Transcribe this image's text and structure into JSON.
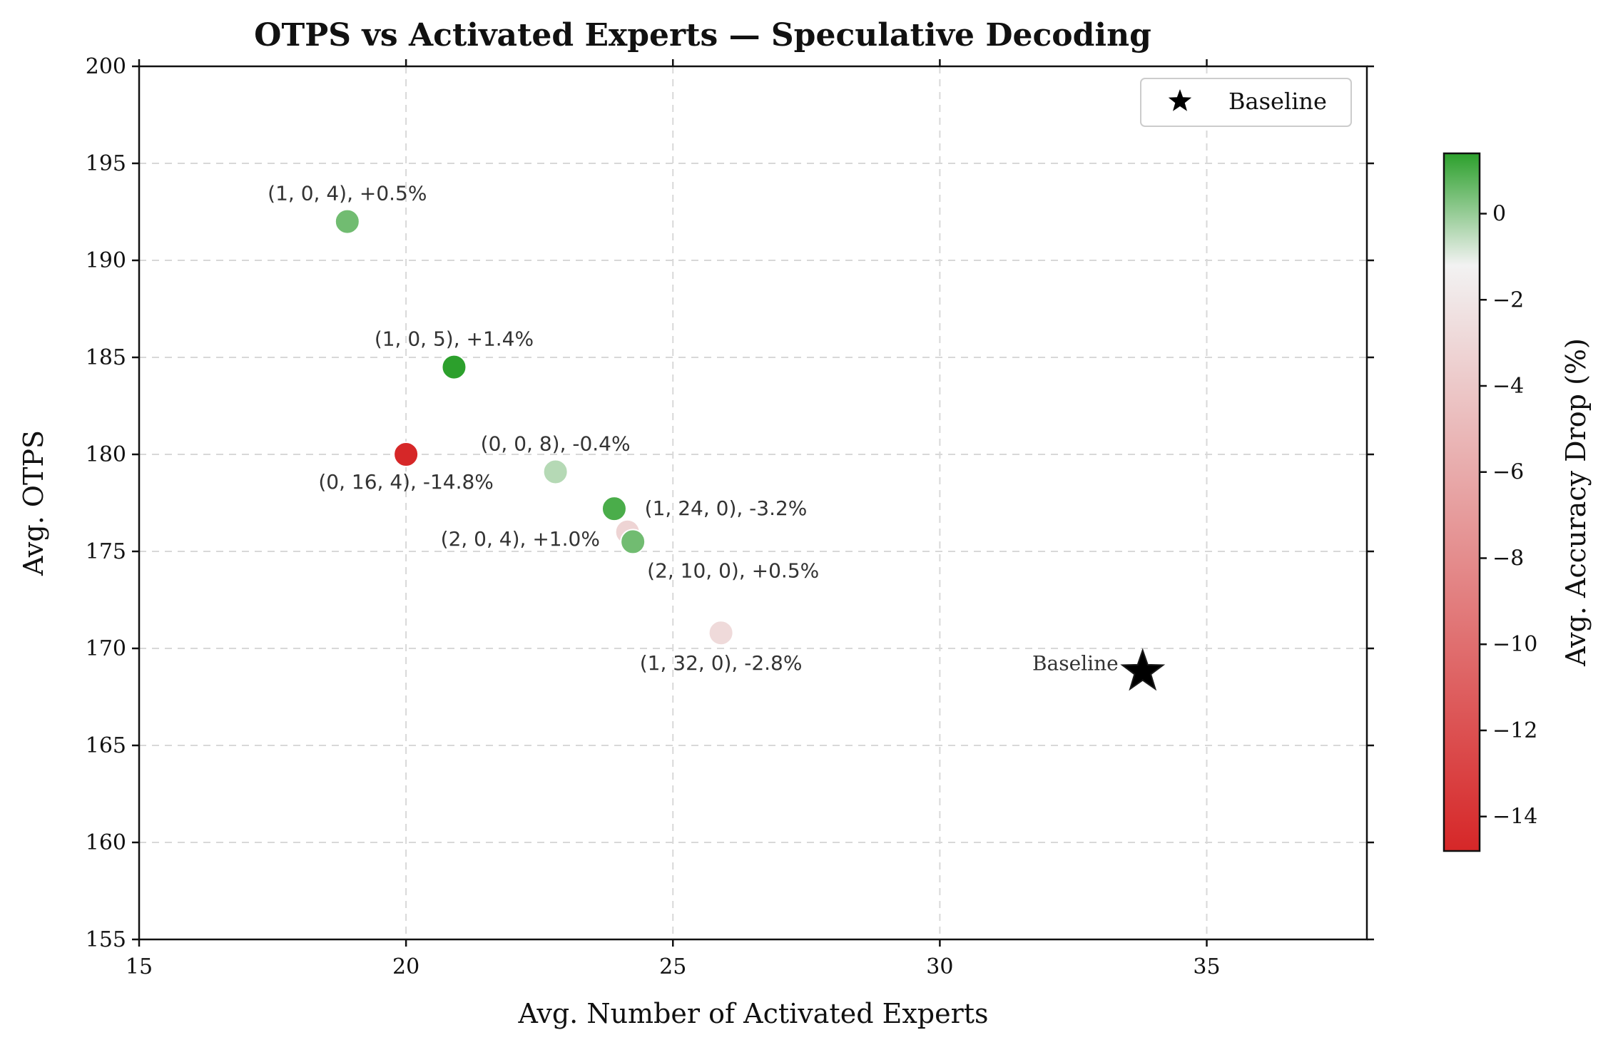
{
  "chart_data": {
    "type": "scatter",
    "title": "OTPS vs Activated Experts — Speculative Decoding",
    "xlabel": "Avg. Number of Activated Experts",
    "ylabel": "Avg. OTPS",
    "xlim": [
      15,
      38
    ],
    "ylim": [
      155,
      200
    ],
    "xticks": [
      "15",
      "20",
      "25",
      "30",
      "35"
    ],
    "yticks": [
      "155",
      "160",
      "165",
      "170",
      "175",
      "180",
      "185",
      "190",
      "195",
      "200"
    ],
    "grid": true,
    "legend": {
      "position": "top-right",
      "entries": [
        {
          "label": "Baseline",
          "marker": "star"
        }
      ]
    },
    "points": [
      {
        "label": "(1, 0, 4), +0.5%",
        "x": 18.9,
        "y": 192.0,
        "acc_drop": 0.5
      },
      {
        "label": "(1, 0, 5), +1.4%",
        "x": 20.9,
        "y": 184.5,
        "acc_drop": 1.4
      },
      {
        "label": "(0, 16, 4), -14.8%",
        "x": 20.0,
        "y": 180.0,
        "acc_drop": -14.8
      },
      {
        "label": "(0, 0, 8), -0.4%",
        "x": 22.8,
        "y": 179.1,
        "acc_drop": -0.4
      },
      {
        "label": "(1, 24, 0), -3.2%",
        "x": 24.15,
        "y": 176.0,
        "acc_drop": -3.2
      },
      {
        "label": "(2, 0, 4), +1.0%",
        "x": 23.9,
        "y": 177.2,
        "acc_drop": 1.0
      },
      {
        "label": "(2, 10, 0), +0.5%",
        "x": 24.25,
        "y": 175.5,
        "acc_drop": 0.5
      },
      {
        "label": "(1, 32, 0), -2.8%",
        "x": 25.9,
        "y": 170.8,
        "acc_drop": -2.8
      }
    ],
    "baseline": {
      "label": "Baseline",
      "x": 33.8,
      "y": 168.8
    },
    "colorbar": {
      "label": "Avg. Accuracy Drop (%)",
      "min": -14.8,
      "max": 1.4,
      "center": -1.2,
      "ticks": [
        "−14",
        "−12",
        "−10",
        "−8",
        "−6",
        "−4",
        "−2",
        "0"
      ],
      "tick_values": [
        -14,
        -12,
        -10,
        -8,
        -6,
        -4,
        -2,
        0
      ],
      "colors": {
        "low": "#d62728",
        "mid": "#f2f2f2",
        "high": "#2ca02c"
      }
    }
  }
}
